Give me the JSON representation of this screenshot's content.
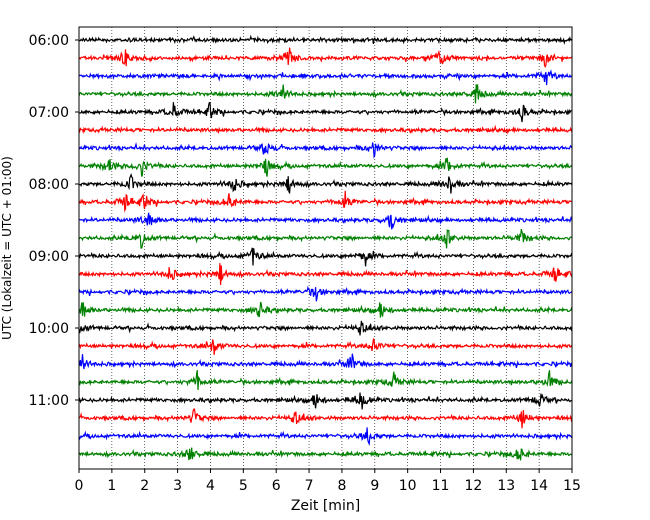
{
  "chart_data": {
    "type": "line",
    "title": "",
    "xlabel": "Zeit  [min]",
    "ylabel": "UTC (Lokalzeit = UTC + 01:00)",
    "xlim": [
      0,
      15
    ],
    "x_ticks": [
      "0",
      "1",
      "2",
      "3",
      "4",
      "5",
      "6",
      "7",
      "8",
      "9",
      "10",
      "11",
      "12",
      "13",
      "14",
      "15"
    ],
    "y_ticks": [
      "06:00",
      "07:00",
      "08:00",
      "09:00",
      "10:00",
      "11:00"
    ],
    "grid": "vertical dotted at each minute",
    "row_interval_minutes": 15,
    "row_colors": [
      "#000000",
      "#ff0000",
      "#0000ff",
      "#008000"
    ],
    "series": [
      {
        "start": "06:00",
        "events_min": []
      },
      {
        "start": "06:15",
        "events_min": [
          1.4,
          6.4,
          11.0,
          14.2
        ]
      },
      {
        "start": "06:30",
        "events_min": [
          14.2
        ]
      },
      {
        "start": "06:45",
        "events_min": [
          6.2,
          12.1
        ]
      },
      {
        "start": "07:00",
        "events_min": [
          2.9,
          4.0,
          13.5
        ]
      },
      {
        "start": "07:15",
        "events_min": []
      },
      {
        "start": "07:30",
        "events_min": [
          5.7,
          9.0
        ]
      },
      {
        "start": "07:45",
        "events_min": [
          0.9,
          1.9,
          5.7,
          11.2
        ]
      },
      {
        "start": "08:00",
        "events_min": [
          1.6,
          4.7,
          6.4,
          11.3
        ]
      },
      {
        "start": "08:15",
        "events_min": [
          1.4,
          2.0,
          4.6,
          8.1
        ]
      },
      {
        "start": "08:30",
        "events_min": [
          2.1,
          9.5
        ]
      },
      {
        "start": "08:45",
        "events_min": [
          1.9,
          11.2,
          13.5
        ]
      },
      {
        "start": "09:00",
        "events_min": [
          5.3,
          8.7
        ]
      },
      {
        "start": "09:15",
        "events_min": [
          2.8,
          4.3,
          14.5
        ]
      },
      {
        "start": "09:30",
        "events_min": [
          7.2
        ]
      },
      {
        "start": "09:45",
        "events_min": [
          0.1,
          5.5,
          9.2
        ]
      },
      {
        "start": "10:00",
        "events_min": [
          0.0,
          8.6
        ]
      },
      {
        "start": "10:15",
        "events_min": [
          4.1,
          9.0
        ]
      },
      {
        "start": "10:30",
        "events_min": [
          0.1,
          8.3
        ]
      },
      {
        "start": "10:45",
        "events_min": [
          3.6,
          9.6,
          14.3
        ]
      },
      {
        "start": "11:00",
        "events_min": [
          7.2,
          8.6,
          14.0
        ]
      },
      {
        "start": "11:15",
        "events_min": [
          3.5,
          6.6,
          13.5
        ]
      },
      {
        "start": "11:30",
        "events_min": [
          8.8
        ]
      },
      {
        "start": "11:45",
        "events_min": [
          3.4,
          13.4
        ]
      }
    ]
  }
}
